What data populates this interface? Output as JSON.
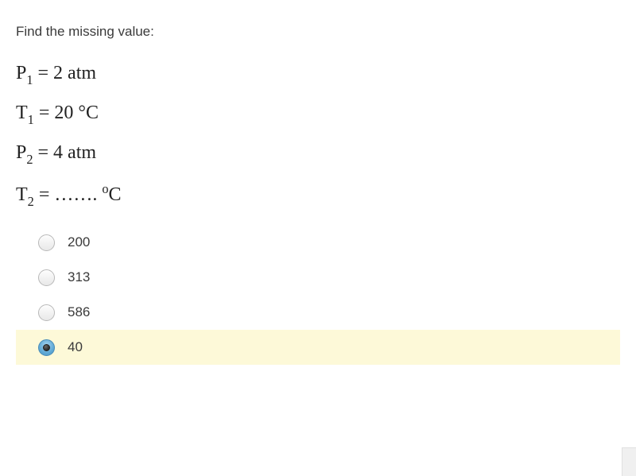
{
  "prompt": "Find the missing value:",
  "equations": {
    "p1": {
      "var": "P",
      "sub": "1",
      "rhs": " = 2 atm"
    },
    "t1": {
      "var": "T",
      "sub": "1",
      "rhs": " = 20 °C"
    },
    "p2": {
      "var": "P",
      "sub": "2",
      "rhs": " = 4 atm"
    },
    "t2": {
      "var": "T",
      "sub": "2",
      "eq": " = ",
      "dots": "…….",
      "unit_sup": "o",
      "unit": "C"
    }
  },
  "options": [
    {
      "label": "200",
      "selected": false
    },
    {
      "label": "313",
      "selected": false
    },
    {
      "label": "586",
      "selected": false
    },
    {
      "label": "40",
      "selected": true
    }
  ],
  "colors": {
    "highlight_bg": "#fdf9d8",
    "text": "#3a3a3a",
    "eq_text": "#222222",
    "radio_ring": "#5fa9d6"
  }
}
